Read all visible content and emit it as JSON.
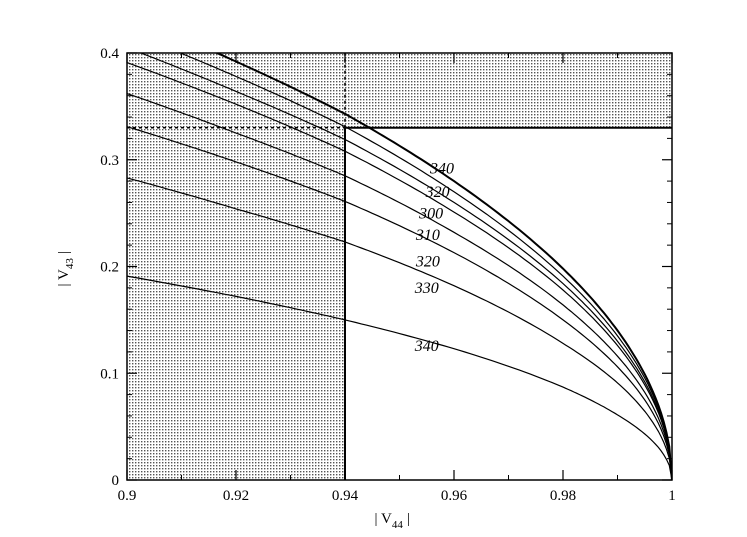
{
  "chart_data": {
    "type": "line",
    "title": "",
    "xlabel": "| V44 |",
    "ylabel": "| V43 |",
    "xlabel_parts": {
      "left_bar": "| V",
      "sub": "44",
      "right_bar": "|"
    },
    "ylabel_parts": {
      "left_bar": "| V",
      "sub": "43",
      "right_bar": "|"
    },
    "xlim": [
      0.9,
      1.0
    ],
    "ylim": [
      0,
      0.4
    ],
    "x_ticks": [
      "0.9",
      "0.92",
      "0.94",
      "0.96",
      "0.98",
      "1"
    ],
    "y_ticks": [
      "0",
      "0.1",
      "0.2",
      "0.3",
      "0.4"
    ],
    "grid": false,
    "legend": "none",
    "excluded_regions": [
      {
        "name": "x-below-bound",
        "x": [
          0.9,
          0.94
        ],
        "y": [
          0,
          0.4
        ]
      },
      {
        "name": "y-above-bound",
        "x": [
          0.9,
          1.0
        ],
        "y": [
          0.33,
          0.4
        ]
      }
    ],
    "bounds": {
      "x": 0.94,
      "y": 0.33
    },
    "series": [
      {
        "label": "340",
        "group": "upper",
        "label_x": 0.9578,
        "label_y": 0.287,
        "points": [
          [
            0.9,
            0.436
          ],
          [
            0.92,
            0.392
          ],
          [
            0.94,
            0.343
          ],
          [
            0.96,
            0.28
          ],
          [
            0.98,
            0.198
          ],
          [
            0.99,
            0.14
          ],
          [
            1.0,
            0.0
          ]
        ]
      },
      {
        "label": "320",
        "group": "upper",
        "label_x": 0.957,
        "label_y": 0.265,
        "points": [
          [
            0.9,
            0.42
          ],
          [
            0.92,
            0.378
          ],
          [
            0.94,
            0.331
          ],
          [
            0.96,
            0.27
          ],
          [
            0.98,
            0.191
          ],
          [
            0.99,
            0.135
          ],
          [
            1.0,
            0.0
          ]
        ]
      },
      {
        "label": "300",
        "group": "upper",
        "label_x": 0.9558,
        "label_y": 0.245,
        "points": [
          [
            0.9,
            0.405
          ],
          [
            0.92,
            0.364
          ],
          [
            0.94,
            0.319
          ],
          [
            0.96,
            0.26
          ],
          [
            0.98,
            0.184
          ],
          [
            0.99,
            0.13
          ],
          [
            1.0,
            0.0
          ]
        ]
      },
      {
        "label": "310",
        "group": "upper",
        "label_x": 0.9552,
        "label_y": 0.225,
        "points": [
          [
            0.9,
            0.391
          ],
          [
            0.92,
            0.352
          ],
          [
            0.94,
            0.308
          ],
          [
            0.96,
            0.251
          ],
          [
            0.98,
            0.178
          ],
          [
            0.99,
            0.126
          ],
          [
            1.0,
            0.0
          ]
        ]
      },
      {
        "label": "320",
        "group": "lower",
        "label_x": 0.9552,
        "label_y": 0.2,
        "points": [
          [
            0.9,
            0.362
          ],
          [
            0.92,
            0.325
          ],
          [
            0.94,
            0.285
          ],
          [
            0.96,
            0.232
          ],
          [
            0.98,
            0.164
          ],
          [
            0.99,
            0.116
          ],
          [
            1.0,
            0.0
          ]
        ]
      },
      {
        "label": "330",
        "group": "lower",
        "label_x": 0.955,
        "label_y": 0.175,
        "points": [
          [
            0.9,
            0.331
          ],
          [
            0.92,
            0.298
          ],
          [
            0.94,
            0.261
          ],
          [
            0.96,
            0.213
          ],
          [
            0.98,
            0.15
          ],
          [
            0.99,
            0.106
          ],
          [
            1.0,
            0.0
          ]
        ]
      },
      {
        "label": "",
        "group": "lower",
        "points": [
          [
            0.9,
            0.283
          ],
          [
            0.92,
            0.254
          ],
          [
            0.94,
            0.223
          ],
          [
            0.96,
            0.182
          ],
          [
            0.98,
            0.128
          ],
          [
            0.99,
            0.091
          ],
          [
            1.0,
            0.0
          ]
        ]
      },
      {
        "label": "340",
        "group": "lower",
        "label_x": 0.955,
        "label_y": 0.121,
        "points": [
          [
            0.9,
            0.191
          ],
          [
            0.92,
            0.172
          ],
          [
            0.94,
            0.15
          ],
          [
            0.96,
            0.123
          ],
          [
            0.98,
            0.087
          ],
          [
            0.99,
            0.061
          ],
          [
            1.0,
            0.0
          ]
        ]
      }
    ]
  }
}
